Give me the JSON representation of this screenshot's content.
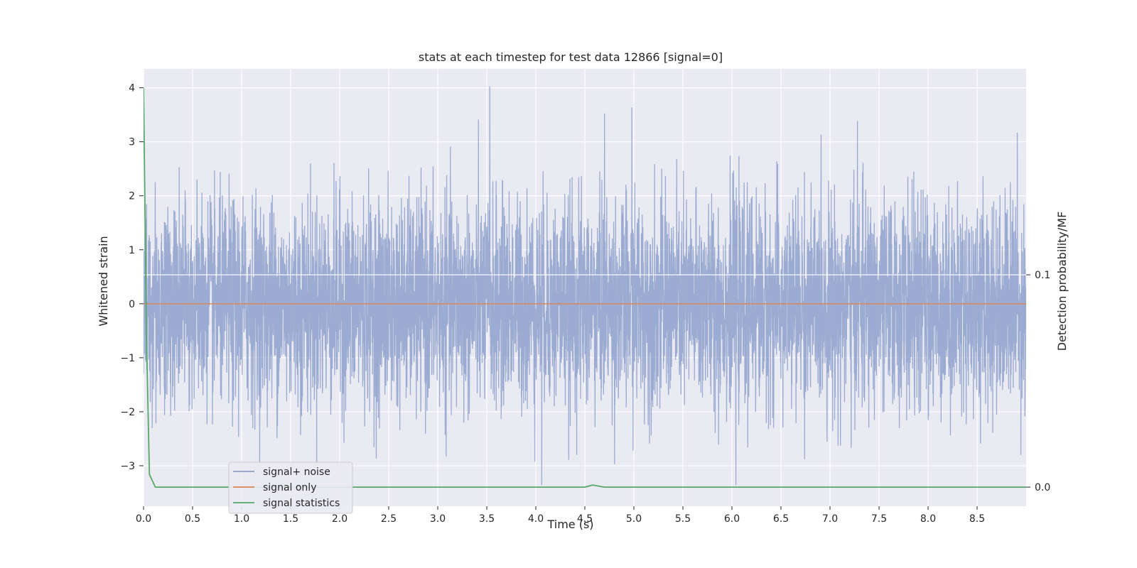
{
  "chart_data": {
    "type": "line",
    "title": "stats at each timestep for test data 12866 [signal=0]",
    "xlabel": "Time (s)",
    "ylabel": "Whitened strain",
    "y2label": "Detection probability/MF",
    "xlim": [
      0.0,
      9.0
    ],
    "ylim": [
      -3.75,
      4.35
    ],
    "y2lim": [
      -0.009,
      0.197
    ],
    "x_ticks": [
      "0.0",
      "0.5",
      "1.0",
      "1.5",
      "2.0",
      "2.5",
      "3.0",
      "3.5",
      "4.0",
      "4.5",
      "5.0",
      "5.5",
      "6.0",
      "6.5",
      "7.0",
      "7.5",
      "8.0",
      "8.5"
    ],
    "x_tick_values": [
      0.0,
      0.5,
      1.0,
      1.5,
      2.0,
      2.5,
      3.0,
      3.5,
      4.0,
      4.5,
      5.0,
      5.5,
      6.0,
      6.5,
      7.0,
      7.5,
      8.0,
      8.5
    ],
    "y_ticks": [
      "4",
      "3",
      "2",
      "1",
      "0",
      "−1",
      "−2",
      "−3"
    ],
    "y_tick_values": [
      4,
      3,
      2,
      1,
      0,
      -1,
      -2,
      -3
    ],
    "y2_ticks": [
      "0.1",
      "0.0"
    ],
    "y2_tick_values": [
      0.1,
      0.0
    ],
    "grid": true,
    "legend_position": "lower-left",
    "series": [
      {
        "name": "signal+ noise",
        "axis": "left",
        "color": "#8da0cb",
        "sample_rate": 2048,
        "envelope": {
          "x": [
            0.0,
            0.5,
            1.0,
            1.5,
            2.0,
            2.5,
            3.0,
            3.5,
            4.0,
            4.5,
            5.0,
            5.5,
            6.0,
            6.5,
            7.0,
            7.5,
            8.0,
            8.5,
            9.0
          ],
          "upper": [
            2.5,
            2.6,
            2.4,
            2.4,
            3.0,
            2.5,
            2.6,
            4.0,
            2.9,
            2.8,
            3.6,
            2.6,
            2.8,
            2.7,
            3.3,
            3.4,
            2.5,
            3.0,
            3.1
          ],
          "lower": [
            -2.4,
            -3.2,
            -3.0,
            -3.0,
            -3.0,
            -3.0,
            -3.0,
            -2.9,
            -3.4,
            -2.9,
            -3.2,
            -3.3,
            -3.3,
            -2.8,
            -3.3,
            -3.2,
            -3.0,
            -3.3,
            -2.9
          ]
        },
        "peaks": [
          {
            "x": 3.53,
            "y": 4.02
          },
          {
            "x": 4.98,
            "y": 3.63
          },
          {
            "x": 4.7,
            "y": 3.52
          },
          {
            "x": 7.28,
            "y": 3.38
          },
          {
            "x": 8.91,
            "y": 3.16
          },
          {
            "x": 4.06,
            "y": -3.35
          },
          {
            "x": 6.04,
            "y": -3.35
          }
        ]
      },
      {
        "name": "signal only",
        "axis": "left",
        "color": "#dd8452",
        "x": [
          0.0,
          9.0
        ],
        "y": [
          0.0,
          0.0
        ]
      },
      {
        "name": "signal statistics",
        "axis": "right",
        "color": "#55a868",
        "x": [
          0.0,
          0.03,
          0.06,
          0.12,
          0.5,
          1.0,
          2.0,
          3.0,
          4.0,
          4.5,
          4.58,
          4.7,
          5.0,
          6.0,
          7.0,
          8.0,
          9.0
        ],
        "y": [
          0.188,
          0.07,
          0.006,
          0.0,
          0.0,
          0.0,
          0.0,
          0.0,
          0.0,
          0.0,
          0.001,
          0.0,
          0.0,
          0.0,
          0.0,
          0.0,
          0.0
        ]
      }
    ],
    "hlines": [
      {
        "axis": "right",
        "y": 0.1,
        "color": "#ffffff"
      }
    ]
  }
}
